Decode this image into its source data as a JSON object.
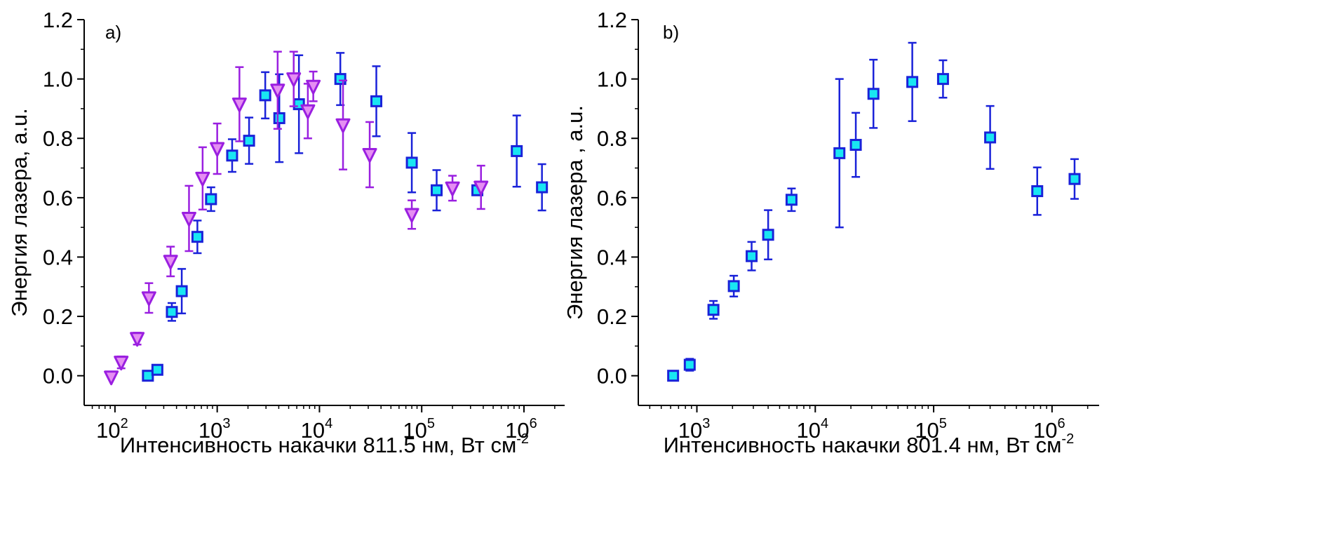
{
  "chart_data": [
    {
      "type": "scatter",
      "panel_label": "a)",
      "xlabel": "Интенсивность накачки 811.5 нм, Вт см",
      "xlabel_exp": "-2",
      "ylabel": "Энергия лазера, a.u.",
      "x_scale": "log",
      "xlim": [
        50,
        2500000
      ],
      "ylim": [
        -0.1,
        1.2
      ],
      "x_ticks": [
        {
          "value": 100,
          "base": "10",
          "exp": "2"
        },
        {
          "value": 1000,
          "base": "10",
          "exp": "3"
        },
        {
          "value": 10000,
          "base": "10",
          "exp": "4"
        },
        {
          "value": 100000,
          "base": "10",
          "exp": "5"
        },
        {
          "value": 1000000,
          "base": "10",
          "exp": "6"
        }
      ],
      "y_ticks": [
        "0.0",
        "0.2",
        "0.4",
        "0.6",
        "0.8",
        "1.0",
        "1.2"
      ],
      "grid": false,
      "series": [
        {
          "marker": "square",
          "fill": "#19e6f2",
          "edge": "#1a22d9",
          "errorbar_color": "#1a22d9",
          "points": [
            {
              "x": 210,
              "y": 0.0,
              "err": 0.0
            },
            {
              "x": 260,
              "y": 0.02,
              "err": 0.0
            },
            {
              "x": 360,
              "y": 0.215,
              "err": 0.03
            },
            {
              "x": 450,
              "y": 0.285,
              "err": 0.075
            },
            {
              "x": 640,
              "y": 0.468,
              "err": 0.055
            },
            {
              "x": 870,
              "y": 0.595,
              "err": 0.04
            },
            {
              "x": 1400,
              "y": 0.742,
              "err": 0.055
            },
            {
              "x": 2050,
              "y": 0.792,
              "err": 0.078
            },
            {
              "x": 2950,
              "y": 0.945,
              "err": 0.078
            },
            {
              "x": 4050,
              "y": 0.868,
              "err": 0.148
            },
            {
              "x": 6300,
              "y": 0.915,
              "err": 0.165
            },
            {
              "x": 16000,
              "y": 1.0,
              "err": 0.088
            },
            {
              "x": 36000,
              "y": 0.925,
              "err": 0.118
            },
            {
              "x": 80000,
              "y": 0.718,
              "err": 0.1
            },
            {
              "x": 140000,
              "y": 0.625,
              "err": 0.068
            },
            {
              "x": 350000,
              "y": 0.625,
              "err": 0.0
            },
            {
              "x": 850000,
              "y": 0.757,
              "err": 0.12
            },
            {
              "x": 1500000,
              "y": 0.635,
              "err": 0.078
            }
          ]
        },
        {
          "marker": "triangle-down",
          "fill": "#e58ef2",
          "edge": "#9a1fe0",
          "errorbar_color": "#9a1fe0",
          "points": [
            {
              "x": 92,
              "y": -0.005,
              "err": 0.0
            },
            {
              "x": 115,
              "y": 0.045,
              "err": 0.02
            },
            {
              "x": 165,
              "y": 0.125,
              "err": 0.02
            },
            {
              "x": 215,
              "y": 0.262,
              "err": 0.05
            },
            {
              "x": 350,
              "y": 0.385,
              "err": 0.05
            },
            {
              "x": 530,
              "y": 0.53,
              "err": 0.11
            },
            {
              "x": 720,
              "y": 0.665,
              "err": 0.105
            },
            {
              "x": 1000,
              "y": 0.765,
              "err": 0.085
            },
            {
              "x": 1650,
              "y": 0.915,
              "err": 0.125
            },
            {
              "x": 3900,
              "y": 0.962,
              "err": 0.13
            },
            {
              "x": 5600,
              "y": 1.0,
              "err": 0.092
            },
            {
              "x": 7700,
              "y": 0.892,
              "err": 0.092
            },
            {
              "x": 8700,
              "y": 0.975,
              "err": 0.05
            },
            {
              "x": 17000,
              "y": 0.845,
              "err": 0.15
            },
            {
              "x": 31000,
              "y": 0.745,
              "err": 0.11
            },
            {
              "x": 80000,
              "y": 0.543,
              "err": 0.048
            },
            {
              "x": 200000,
              "y": 0.632,
              "err": 0.042
            },
            {
              "x": 380000,
              "y": 0.635,
              "err": 0.073
            }
          ]
        }
      ]
    },
    {
      "type": "scatter",
      "panel_label": "b)",
      "xlabel": "Интенсивность накачки 801.4 нм, Вт см",
      "xlabel_exp": "-2",
      "ylabel": "Энергия лазера , a.u.",
      "x_scale": "log",
      "xlim": [
        320,
        2500000
      ],
      "ylim": [
        -0.1,
        1.2
      ],
      "x_ticks": [
        {
          "value": 1000,
          "base": "10",
          "exp": "3"
        },
        {
          "value": 10000,
          "base": "10",
          "exp": "4"
        },
        {
          "value": 100000,
          "base": "10",
          "exp": "5"
        },
        {
          "value": 1000000,
          "base": "10",
          "exp": "6"
        }
      ],
      "y_ticks": [
        "0.0",
        "0.2",
        "0.4",
        "0.6",
        "0.8",
        "1.0",
        "1.2"
      ],
      "grid": false,
      "series": [
        {
          "marker": "square",
          "fill": "#19e6f2",
          "edge": "#1a22d9",
          "errorbar_color": "#1a22d9",
          "points": [
            {
              "x": 630,
              "y": 0.0,
              "err": 0.0
            },
            {
              "x": 870,
              "y": 0.037,
              "err": 0.02
            },
            {
              "x": 1380,
              "y": 0.222,
              "err": 0.03
            },
            {
              "x": 2050,
              "y": 0.302,
              "err": 0.035
            },
            {
              "x": 2900,
              "y": 0.403,
              "err": 0.048
            },
            {
              "x": 4000,
              "y": 0.475,
              "err": 0.083
            },
            {
              "x": 6300,
              "y": 0.593,
              "err": 0.038
            },
            {
              "x": 16000,
              "y": 0.75,
              "err": 0.25
            },
            {
              "x": 22000,
              "y": 0.778,
              "err": 0.108
            },
            {
              "x": 31000,
              "y": 0.95,
              "err": 0.115
            },
            {
              "x": 66000,
              "y": 0.99,
              "err": 0.132
            },
            {
              "x": 120000,
              "y": 1.0,
              "err": 0.063
            },
            {
              "x": 300000,
              "y": 0.803,
              "err": 0.106
            },
            {
              "x": 750000,
              "y": 0.622,
              "err": 0.08
            },
            {
              "x": 1550000,
              "y": 0.663,
              "err": 0.067
            }
          ]
        }
      ]
    }
  ]
}
